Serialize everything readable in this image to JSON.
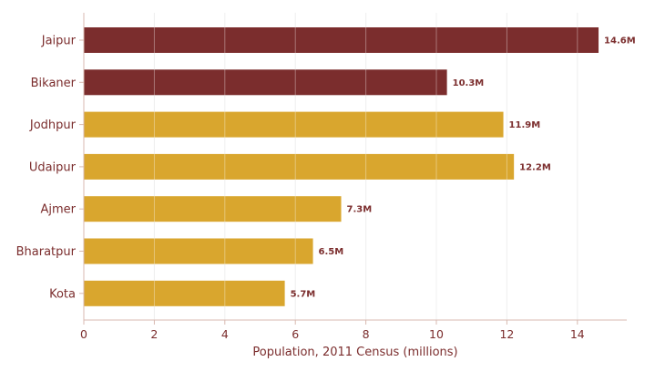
{
  "chart_data": {
    "type": "bar",
    "orientation": "horizontal",
    "categories": [
      "Jaipur",
      "Bikaner",
      "Jodhpur",
      "Udaipur",
      "Ajmer",
      "Bharatpur",
      "Kota"
    ],
    "values": [
      14.6,
      10.3,
      11.9,
      12.2,
      7.3,
      6.5,
      5.7
    ],
    "data_labels": [
      "14.6M",
      "10.3M",
      "11.9M",
      "12.2M",
      "7.3M",
      "6.5M",
      "5.7M"
    ],
    "bar_colors": [
      "#7b2d2d",
      "#7b2d2d",
      "#d9a62e",
      "#d9a62e",
      "#d9a62e",
      "#d9a62e",
      "#d9a62e"
    ],
    "xlabel": "Population, 2011 Census (millions)",
    "ylabel": "",
    "title": "",
    "xlim": [
      0,
      15.4
    ],
    "xticks": [
      0,
      2,
      4,
      6,
      8,
      10,
      12,
      14
    ],
    "grid": "vertical",
    "colors": {
      "text": "#7b2d2d",
      "axis": "#d8b9b0",
      "grid": "#e8e8e8"
    }
  }
}
